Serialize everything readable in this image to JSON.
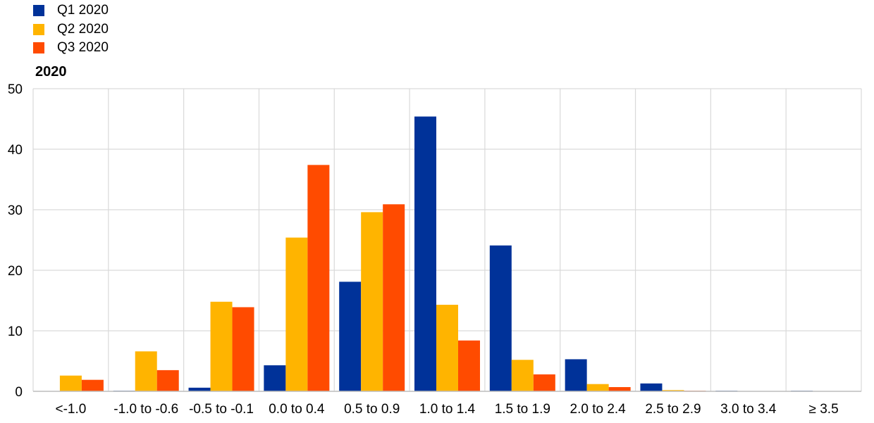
{
  "chart_data": {
    "type": "bar",
    "title": "2020",
    "categories": [
      "<-1.0",
      "-1.0 to -0.6",
      "-0.5 to -0.1",
      "0.0 to 0.4",
      "0.5 to 0.9",
      "1.0 to 1.4",
      "1.5 to 1.9",
      "2.0 to 2.4",
      "2.5 to 2.9",
      "3.0 to 3.4",
      "≥ 3.5"
    ],
    "series": [
      {
        "name": "Q1 2020",
        "color": "#003299",
        "values": [
          0,
          0.1,
          0.6,
          4.3,
          18.1,
          45.4,
          24.1,
          5.3,
          1.3,
          0.1,
          0.1
        ]
      },
      {
        "name": "Q2 2020",
        "color": "#FFB400",
        "values": [
          2.6,
          6.6,
          14.8,
          25.4,
          29.6,
          14.3,
          5.2,
          1.2,
          0.2,
          0,
          0
        ]
      },
      {
        "name": "Q3 2020",
        "color": "#FF4B00",
        "values": [
          1.9,
          3.5,
          13.9,
          37.4,
          30.9,
          8.4,
          2.8,
          0.7,
          0.1,
          0,
          0
        ]
      }
    ],
    "xlabel": "",
    "ylabel": "",
    "ylim": [
      0,
      50
    ],
    "yticks": [
      0,
      10,
      20,
      30,
      40,
      50
    ],
    "grid": true,
    "legend_position": "top-left"
  }
}
